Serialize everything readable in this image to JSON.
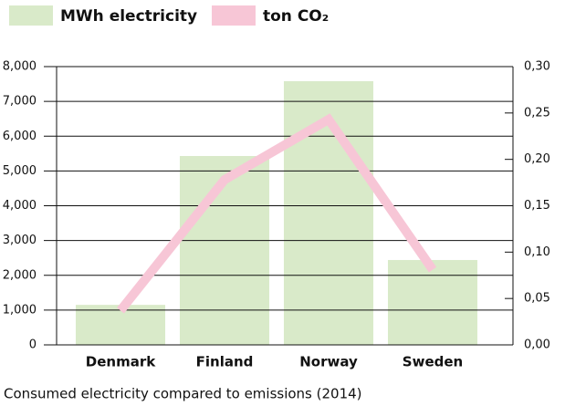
{
  "chart_data": {
    "type": "bar",
    "caption": "Consumed electricity compared to emissions (2014)",
    "categories": [
      "Denmark",
      "Finland",
      "Norway",
      "Sweden"
    ],
    "series": [
      {
        "name": "MWh electricity",
        "color": "#d9eac9",
        "type": "bar",
        "values": [
          1150,
          5430,
          7580,
          2440
        ]
      },
      {
        "name": "ton CO₂",
        "color": "#f7c6d6",
        "type": "line",
        "axis": "y2",
        "values": [
          0.037,
          0.178,
          0.243,
          0.081
        ]
      }
    ],
    "ylim": [
      0,
      8000
    ],
    "yticks": [
      0,
      {
        "value": 1000,
        "label": "1,000"
      },
      {
        "value": 2000,
        "label": "2,000"
      },
      {
        "value": 3000,
        "label": "3,000"
      },
      {
        "value": 4000,
        "label": "4,000"
      },
      {
        "value": 5000,
        "label": "5,000"
      },
      {
        "value": 6000,
        "label": "6,000"
      },
      {
        "value": 7000,
        "label": "7,000"
      },
      {
        "value": 8000,
        "label": "8,000"
      }
    ],
    "y2lim": [
      0,
      0.3
    ],
    "y2ticks": [
      {
        "value": 0,
        "label": "0,00"
      },
      {
        "value": 0.05,
        "label": "0,05"
      },
      {
        "value": 0.1,
        "label": "0,10"
      },
      {
        "value": 0.15,
        "label": "0,15"
      },
      {
        "value": 0.2,
        "label": "0,20"
      },
      {
        "value": 0.25,
        "label": "0,25"
      },
      {
        "value": 0.3,
        "label": "0,30"
      }
    ],
    "grid": true,
    "legend": "top"
  }
}
